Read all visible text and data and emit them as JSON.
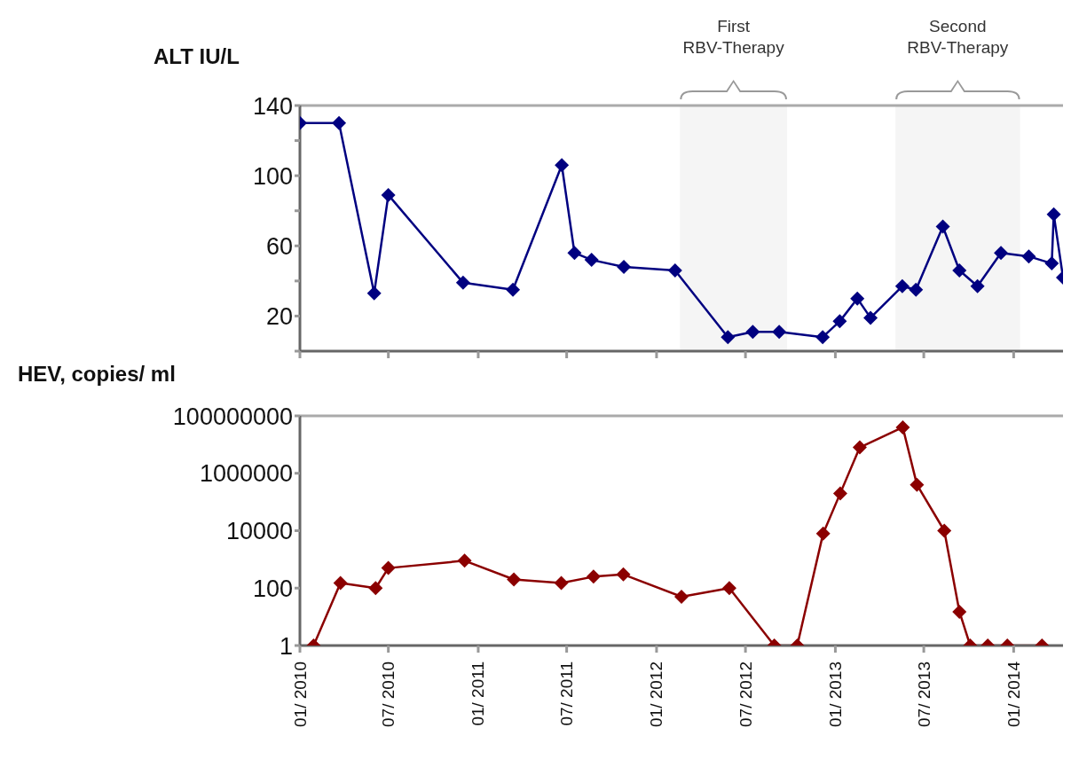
{
  "chart_data": [
    {
      "type": "line",
      "ylabel": "ALT IU/L",
      "marker": "diamond",
      "tick_labels": "y",
      "xlim": [
        "2010-01-01",
        "2014-04-12"
      ],
      "xticks": [
        {
          "value": "2010-01",
          "label": null
        },
        {
          "value": "2010-07",
          "label": null
        },
        {
          "value": "2011-01",
          "label": null
        },
        {
          "value": "2011-07",
          "label": null
        },
        {
          "value": "2012-01",
          "label": null
        },
        {
          "value": "2012-07",
          "label": null
        },
        {
          "value": "2013-01",
          "label": null
        },
        {
          "value": "2013-07",
          "label": null
        },
        {
          "value": "2014-01",
          "label": null
        }
      ],
      "ylim": [
        0,
        140
      ],
      "yticks": [
        {
          "value": 0,
          "label": null
        },
        20,
        {
          "value": 40,
          "label": null
        },
        60,
        {
          "value": 80,
          "label": null
        },
        100,
        {
          "value": 120,
          "label": null
        },
        140
      ],
      "bands": [
        {
          "axis": "x",
          "from": "2012-02-18",
          "to": "2012-09-24",
          "label": "First RBV-Therapy",
          "color": "#999999"
        },
        {
          "axis": "x",
          "from": "2013-05-04",
          "to": "2014-01-14",
          "label": "Second RBV-Therapy",
          "color": "#999999"
        }
      ],
      "series": [
        {
          "color": "#000080",
          "x": [
            "2010-01-01",
            "2010-03-22",
            "2010-06-02",
            "2010-07-01",
            "2010-12-01",
            "2011-03-13",
            "2011-06-21",
            "2011-07-17",
            "2011-08-21",
            "2011-10-26",
            "2012-02-08",
            "2012-05-26",
            "2012-07-16",
            "2012-09-08",
            "2012-12-06",
            "2013-01-10",
            "2013-02-15",
            "2013-03-14",
            "2013-05-18",
            "2013-06-15",
            "2013-08-09",
            "2013-09-12",
            "2013-10-19",
            "2013-12-06",
            "2014-02-01",
            "2014-03-20",
            "2014-03-24",
            "2014-04-12"
          ],
          "values": [
            130,
            130,
            33,
            89,
            39,
            35,
            106,
            56,
            52,
            48,
            46,
            8,
            11,
            11,
            8,
            17,
            30,
            19,
            37,
            35,
            71,
            46,
            37,
            56,
            54,
            50,
            78,
            42
          ]
        }
      ]
    },
    {
      "type": "line",
      "ylabel": "HEV, copies/ ml",
      "marker": "diamond",
      "log": "y",
      "xlim": [
        "2010-01-01",
        "2014-04-12"
      ],
      "xticks": [
        {
          "value": "2010-01",
          "label": "01/ 2010"
        },
        {
          "value": "2010-07",
          "label": "07/ 2010"
        },
        {
          "value": "2011-01",
          "label": "01/ 2011"
        },
        {
          "value": "2011-07",
          "label": "07/ 2011"
        },
        {
          "value": "2012-01",
          "label": "01/ 2012"
        },
        {
          "value": "2012-07",
          "label": "07/ 2012"
        },
        {
          "value": "2013-01",
          "label": "01/ 2013"
        },
        {
          "value": "2013-07",
          "label": "07/ 2013"
        },
        {
          "value": "2014-01",
          "label": "01/ 2014"
        }
      ],
      "ylim": [
        1,
        100000000
      ],
      "yticks": [
        1,
        100,
        10000,
        1000000,
        100000000
      ],
      "series": [
        {
          "color": "#8b0000",
          "x": [
            "2010-01-29",
            "2010-03-25",
            "2010-06-05",
            "2010-07-01",
            "2010-12-04",
            "2011-03-15",
            "2011-06-20",
            "2011-08-25",
            "2011-10-25",
            "2012-02-21",
            "2012-05-29",
            "2012-08-29",
            "2012-10-15",
            "2012-12-07",
            "2013-01-11",
            "2013-02-20",
            "2013-05-19",
            "2013-06-17",
            "2013-08-12",
            "2013-09-12",
            "2013-10-04",
            "2013-11-09",
            "2013-12-19",
            "2014-02-28"
          ],
          "values": [
            1,
            150,
            100,
            500,
            900,
            200,
            150,
            250,
            300,
            50,
            100,
            1,
            1,
            8000,
            200000,
            8000000,
            40000000,
            400000,
            10000,
            15,
            1,
            1,
            1,
            1
          ]
        }
      ]
    }
  ]
}
